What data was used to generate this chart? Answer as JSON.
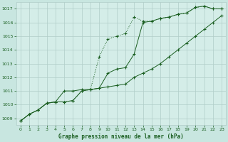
{
  "title": "Graphe pression niveau de la mer (hPa)",
  "bg_color": "#c8e6e0",
  "plot_bg_color": "#d4ede8",
  "grid_color": "#b0ccc8",
  "line_color": "#1a5e20",
  "x_ticks": [
    0,
    1,
    2,
    3,
    4,
    5,
    6,
    7,
    8,
    9,
    10,
    11,
    12,
    13,
    14,
    15,
    16,
    17,
    18,
    19,
    20,
    21,
    22,
    23
  ],
  "y_ticks": [
    1009,
    1010,
    1011,
    1012,
    1013,
    1014,
    1015,
    1016,
    1017
  ],
  "ylim": [
    1008.5,
    1017.5
  ],
  "xlim": [
    -0.5,
    23.5
  ],
  "series1_dotted": [
    1008.8,
    1009.3,
    1009.6,
    1010.1,
    1010.2,
    1010.2,
    1010.3,
    1011.0,
    1011.1,
    1013.5,
    1014.8,
    1015.0,
    1015.2,
    1016.4,
    1016.1,
    1016.1,
    1016.3,
    1016.4,
    1016.6,
    1016.7,
    1017.1,
    1017.2,
    1017.0,
    1017.0
  ],
  "series2_upper": [
    1008.8,
    1009.3,
    1009.6,
    1010.1,
    1010.2,
    1010.2,
    1010.3,
    1011.0,
    1011.1,
    1011.2,
    1011.3,
    1011.4,
    1011.5,
    1012.0,
    1012.3,
    1012.6,
    1013.0,
    1013.5,
    1014.0,
    1014.5,
    1015.0,
    1015.5,
    1016.0,
    1016.5
  ],
  "series3_main": [
    1008.8,
    1009.3,
    1009.6,
    1010.1,
    1010.2,
    1011.0,
    1011.0,
    1011.1,
    1011.1,
    1011.2,
    1012.3,
    1012.6,
    1012.7,
    1013.7,
    1016.0,
    1016.1,
    1016.3,
    1016.4,
    1016.6,
    1016.7,
    1017.1,
    1017.2,
    1017.0,
    1017.0
  ]
}
